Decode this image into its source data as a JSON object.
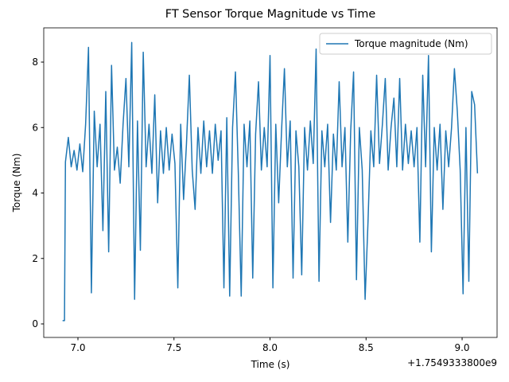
{
  "chart_data": {
    "type": "line",
    "title": "FT Sensor Torque Magnitude vs Time",
    "x_label": "Time (s)",
    "y_label": "Torque (Nm)",
    "x_offset_label": "+1.7549333800e9",
    "legend_position": "upper right",
    "grid": false,
    "xlim": [
      6.822,
      9.182
    ],
    "ylim": [
      -0.413,
      9.046
    ],
    "xticks": [
      {
        "value": 7,
        "label": "7.0"
      },
      {
        "value": 7.5,
        "label": "7.5"
      },
      {
        "value": 8,
        "label": "8.0"
      },
      {
        "value": 8.5,
        "label": "8.5"
      },
      {
        "value": 9,
        "label": "9.0"
      }
    ],
    "yticks": [
      0,
      2,
      4,
      6,
      8
    ],
    "x": [
      6.92,
      6.93,
      6.935,
      6.95,
      6.965,
      6.98,
      6.995,
      7.01,
      7.025,
      7.04,
      7.055,
      7.07,
      7.085,
      7.1,
      7.115,
      7.13,
      7.145,
      7.16,
      7.175,
      7.19,
      7.205,
      7.22,
      7.235,
      7.25,
      7.265,
      7.28,
      7.295,
      7.31,
      7.325,
      7.34,
      7.355,
      7.37,
      7.385,
      7.4,
      7.415,
      7.43,
      7.445,
      7.46,
      7.475,
      7.49,
      7.505,
      7.52,
      7.535,
      7.55,
      7.565,
      7.58,
      7.595,
      7.61,
      7.625,
      7.64,
      7.655,
      7.67,
      7.685,
      7.7,
      7.715,
      7.73,
      7.745,
      7.76,
      7.775,
      7.79,
      7.805,
      7.82,
      7.835,
      7.85,
      7.865,
      7.88,
      7.895,
      7.91,
      7.925,
      7.94,
      7.955,
      7.97,
      7.985,
      8.0,
      8.015,
      8.03,
      8.045,
      8.06,
      8.075,
      8.09,
      8.105,
      8.12,
      8.135,
      8.15,
      8.165,
      8.18,
      8.195,
      8.21,
      8.225,
      8.24,
      8.255,
      8.27,
      8.285,
      8.3,
      8.315,
      8.33,
      8.345,
      8.36,
      8.375,
      8.39,
      8.405,
      8.42,
      8.435,
      8.45,
      8.465,
      8.48,
      8.495,
      8.51,
      8.525,
      8.54,
      8.555,
      8.57,
      8.585,
      8.6,
      8.615,
      8.63,
      8.645,
      8.66,
      8.675,
      8.69,
      8.705,
      8.72,
      8.735,
      8.75,
      8.765,
      8.78,
      8.795,
      8.81,
      8.825,
      8.84,
      8.855,
      8.87,
      8.885,
      8.9,
      8.915,
      8.93,
      8.945,
      8.96,
      8.975,
      8.99,
      9.005,
      9.02,
      9.035,
      9.05,
      9.065,
      9.08
    ],
    "series": [
      {
        "name": "Torque magnitude (Nm)",
        "color": "#1f77b4",
        "values": [
          0.1,
          0.1,
          4.95,
          5.7,
          4.8,
          5.3,
          4.7,
          5.5,
          4.65,
          6.1,
          8.45,
          0.95,
          6.5,
          4.8,
          6.1,
          2.85,
          7.1,
          2.2,
          7.9,
          4.7,
          5.4,
          4.3,
          6.1,
          7.5,
          4.8,
          8.6,
          0.75,
          6.2,
          2.25,
          8.3,
          4.8,
          6.1,
          4.6,
          7.0,
          3.7,
          5.9,
          4.6,
          6.0,
          4.7,
          5.8,
          4.9,
          1.1,
          6.1,
          3.8,
          5.5,
          7.6,
          4.7,
          3.5,
          6.0,
          4.6,
          6.2,
          4.8,
          5.9,
          4.6,
          6.1,
          5.0,
          5.9,
          1.1,
          6.3,
          0.85,
          6.0,
          7.7,
          4.6,
          0.85,
          6.1,
          4.8,
          6.2,
          1.4,
          5.8,
          7.4,
          4.7,
          6.0,
          4.8,
          8.2,
          1.1,
          6.1,
          3.7,
          5.9,
          7.8,
          4.8,
          6.2,
          1.4,
          5.9,
          4.8,
          1.5,
          6.0,
          4.7,
          6.2,
          4.9,
          8.4,
          1.3,
          5.9,
          4.8,
          6.1,
          3.1,
          5.8,
          4.7,
          7.4,
          4.8,
          6.0,
          2.5,
          5.9,
          7.7,
          1.35,
          6.0,
          4.7,
          0.75,
          3.1,
          5.9,
          4.8,
          7.6,
          4.9,
          6.1,
          7.5,
          4.7,
          6.0,
          6.9,
          4.8,
          7.5,
          4.7,
          6.1,
          4.9,
          5.9,
          4.8,
          6.0,
          2.5,
          7.6,
          4.8,
          8.2,
          2.2,
          6.0,
          4.7,
          6.1,
          3.5,
          5.9,
          4.8,
          6.0,
          7.8,
          6.5,
          4.7,
          0.92,
          6.0,
          1.3,
          7.1,
          6.7,
          4.6
        ]
      }
    ]
  }
}
